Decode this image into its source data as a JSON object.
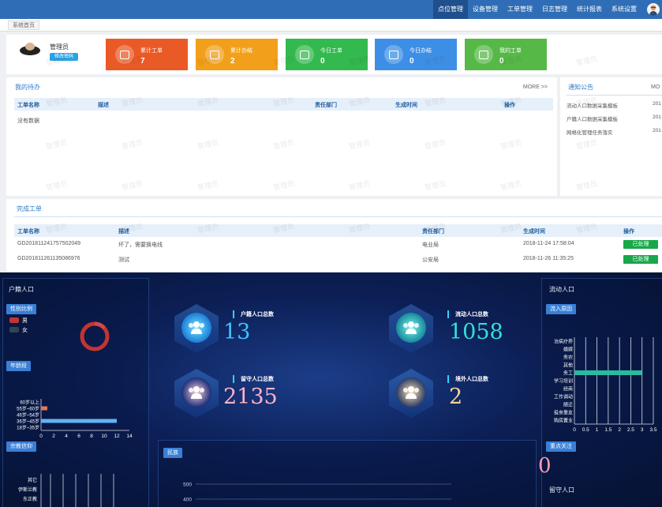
{
  "nav": {
    "items": [
      "点位管理",
      "设备管理",
      "工单管理",
      "日志管理",
      "统计报表",
      "系统设置"
    ],
    "active": "点位管理"
  },
  "tabs": {
    "home": "系统首页"
  },
  "user": {
    "name": "管理员",
    "change_password": "修改密码"
  },
  "cards": [
    {
      "label": "累计工单",
      "value": "7",
      "color": "#ea5a26"
    },
    {
      "label": "累计办结",
      "value": "2",
      "color": "#f2a01b"
    },
    {
      "label": "今日工单",
      "value": "0",
      "color": "#33b94e"
    },
    {
      "label": "今日办结",
      "value": "0",
      "color": "#3d8fe6"
    },
    {
      "label": "我的工单",
      "value": "0",
      "color": "#56b947"
    }
  ],
  "todo": {
    "title": "我的待办",
    "more": "MORE >>",
    "columns": [
      "工单名称",
      "描述",
      "责任部门",
      "生成时间",
      "操作"
    ],
    "empty": "没有数据"
  },
  "notice": {
    "title": "通知公告",
    "more": "MO",
    "items": [
      {
        "text": "流动人口数据采集模板",
        "date": "201"
      },
      {
        "text": "户籍人口数据采集模板",
        "date": "201"
      },
      {
        "text": "网格化管理任务落实",
        "date": "201"
      }
    ]
  },
  "done": {
    "title": "完成工单",
    "columns": [
      "工单名称",
      "描述",
      "责任部门",
      "生成时间",
      "操作"
    ],
    "rows": [
      {
        "id": "GD201811241757502049",
        "desc": "坏了，需要换电线",
        "dept": "电业局",
        "time": "2018-11-24 17:58:04",
        "action": "已处理"
      },
      {
        "id": "GD201811261135086976",
        "desc": "测试",
        "dept": "公安局",
        "time": "2018-11-26 11:35:25",
        "action": "已处理"
      }
    ]
  },
  "watermark": "管理员",
  "dashboard": {
    "left_title": "户籍人口",
    "gender_btn": "性别比例",
    "legend": [
      {
        "label": "男",
        "color": "#c23531"
      },
      {
        "label": "女",
        "color": "#2f4554"
      }
    ],
    "age_btn": "年龄段",
    "religion_btn": "宗教信仰",
    "religion_labels": [
      "其它",
      "伊斯兰教",
      "东正教"
    ],
    "stats": [
      {
        "label": "户籍人口总数",
        "value": "13",
        "color": "#3fc3ff"
      },
      {
        "label": "流动人口总数",
        "value": "1058",
        "color": "#34e0d4"
      },
      {
        "label": "留守人口总数",
        "value": "2135",
        "color": "#ffb3c8"
      },
      {
        "label": "境外人口总数",
        "value": "2",
        "color": "#f6d39a"
      }
    ],
    "nation_btn": "民族",
    "right_title": "流动人口",
    "reason_btn": "流入原因",
    "focus_btn": "重点关注",
    "focus_value": "0",
    "stay_title": "留守人口",
    "nation_y_ticks": [
      "500",
      "400"
    ]
  },
  "chart_data": [
    {
      "type": "bar",
      "orientation": "horizontal",
      "categories": [
        "18岁~35岁",
        "36岁~45岁",
        "46岁~54岁",
        "55岁~60岁",
        "60岁以上"
      ],
      "values": [
        0,
        12,
        0,
        1,
        0
      ],
      "x_ticks": [
        "0",
        "2",
        "4",
        "6",
        "8",
        "10",
        "12",
        "14"
      ],
      "xlim": [
        0,
        14
      ]
    },
    {
      "type": "bar",
      "orientation": "horizontal",
      "categories": [
        "购房置业",
        "投亲靠友",
        "随迁",
        "工作调动",
        "经商",
        "学习培训",
        "务工",
        "其他",
        "务农",
        "婚嫁",
        "治病疗养"
      ],
      "values": [
        0,
        0,
        0,
        0,
        0,
        0,
        3,
        0,
        0,
        0,
        0
      ],
      "x_ticks": [
        "0",
        "0.5",
        "1",
        "1.5",
        "2",
        "2.5",
        "3",
        "3.5"
      ],
      "xlim": [
        0,
        3.5
      ]
    },
    {
      "type": "pie",
      "labels": [
        "男",
        "女"
      ],
      "values": [
        1,
        0
      ]
    }
  ]
}
